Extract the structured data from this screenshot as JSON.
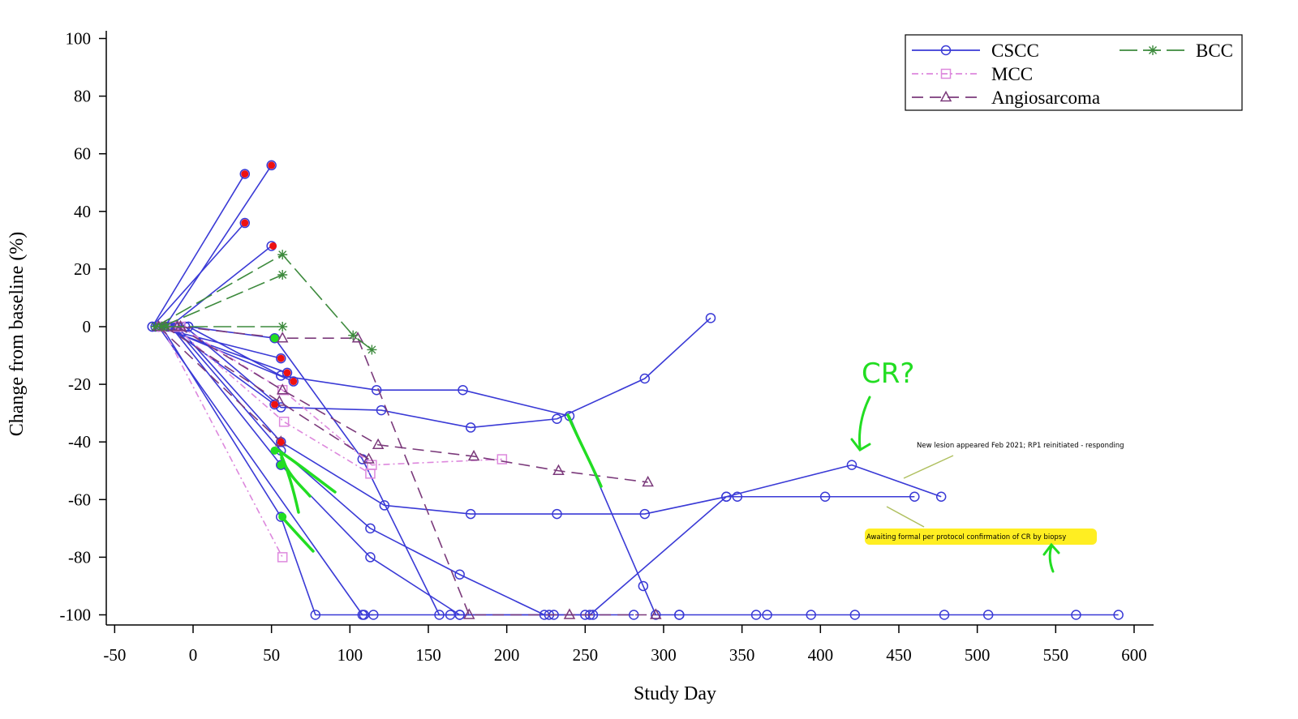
{
  "chart_data": {
    "type": "line",
    "xlabel": "Study Day",
    "ylabel": "Change from baseline (%)",
    "xlim": [
      -50,
      600
    ],
    "ylim": [
      -100,
      100
    ],
    "xticks": [
      -50,
      0,
      50,
      100,
      150,
      200,
      250,
      300,
      350,
      400,
      450,
      500,
      550,
      600
    ],
    "yticks": [
      -100,
      -80,
      -60,
      -40,
      -20,
      0,
      20,
      40,
      60,
      80,
      100
    ],
    "grid": false,
    "legend_position": "top-right",
    "legend": [
      {
        "label": "CSCC",
        "color": "#3a3ad6",
        "marker": "circle",
        "dash": ""
      },
      {
        "label": "MCC",
        "color": "#dd88dd",
        "marker": "square",
        "dash": "8,4,2,4"
      },
      {
        "label": "Angiosarcoma",
        "color": "#7b3a7b",
        "marker": "triangle",
        "dash": "14,8"
      },
      {
        "label": "BCC",
        "color": "#3d8a3d",
        "marker": "star",
        "dash": "22,7"
      }
    ],
    "series": [
      {
        "type": "CSCC",
        "points": [
          [
            -26,
            0
          ],
          [
            33,
            53
          ]
        ]
      },
      {
        "type": "CSCC",
        "points": [
          [
            -26,
            0
          ],
          [
            33,
            36
          ]
        ]
      },
      {
        "type": "CSCC",
        "points": [
          [
            -18,
            0
          ],
          [
            50,
            56
          ]
        ]
      },
      {
        "type": "CSCC",
        "points": [
          [
            -15,
            0
          ],
          [
            50,
            28
          ]
        ]
      },
      {
        "type": "CSCC",
        "points": [
          [
            -24,
            0
          ],
          [
            56,
            -11
          ]
        ]
      },
      {
        "type": "CSCC",
        "points": [
          [
            -22,
            0
          ],
          [
            60,
            -16
          ]
        ]
      },
      {
        "type": "CSCC",
        "points": [
          [
            -20,
            0
          ],
          [
            64,
            -19
          ]
        ]
      },
      {
        "type": "CSCC",
        "points": [
          [
            -16,
            0
          ],
          [
            52,
            -27
          ]
        ]
      },
      {
        "type": "CSCC",
        "points": [
          [
            -3,
            0
          ],
          [
            52,
            -4
          ],
          [
            108,
            -46
          ],
          [
            157,
            -100
          ],
          [
            164,
            -100
          ],
          [
            170,
            -100
          ]
        ]
      },
      {
        "type": "CSCC",
        "points": [
          [
            -3,
            0
          ],
          [
            56,
            -17
          ],
          [
            117,
            -22
          ],
          [
            172,
            -22
          ],
          [
            240,
            -31
          ],
          [
            287,
            -90
          ],
          [
            295,
            -100
          ],
          [
            310,
            -100
          ]
        ]
      },
      {
        "type": "CSCC",
        "points": [
          [
            -5,
            0
          ],
          [
            56,
            -28
          ],
          [
            120,
            -29
          ],
          [
            177,
            -35
          ],
          [
            232,
            -32
          ],
          [
            288,
            -18
          ],
          [
            330,
            3
          ]
        ]
      },
      {
        "type": "CSCC",
        "points": [
          [
            -10,
            0
          ],
          [
            56,
            -40
          ],
          [
            122,
            -62
          ],
          [
            177,
            -65
          ],
          [
            232,
            -65
          ],
          [
            288,
            -65
          ],
          [
            340,
            -59
          ],
          [
            420,
            -48
          ],
          [
            477,
            -59
          ]
        ]
      },
      {
        "type": "CSCC",
        "points": [
          [
            -12,
            0
          ],
          [
            56,
            -43
          ],
          [
            113,
            -70
          ],
          [
            170,
            -86
          ],
          [
            224,
            -100
          ],
          [
            227,
            -100
          ],
          [
            250,
            -100
          ],
          [
            255,
            -100
          ],
          [
            281,
            -100
          ]
        ]
      },
      {
        "type": "CSCC",
        "points": [
          [
            -14,
            0
          ],
          [
            56,
            -48
          ],
          [
            113,
            -80
          ],
          [
            170,
            -100
          ],
          [
            230,
            -100
          ]
        ]
      },
      {
        "type": "CSCC",
        "points": [
          [
            -20,
            0
          ],
          [
            56,
            -66
          ],
          [
            78,
            -100
          ],
          [
            109,
            -100
          ],
          [
            115,
            -100
          ]
        ]
      },
      {
        "type": "CSCC",
        "points": [
          [
            -22,
            0
          ],
          [
            108,
            -100
          ],
          [
            253,
            -100
          ],
          [
            340,
            -59
          ],
          [
            347,
            -59
          ],
          [
            403,
            -59
          ],
          [
            460,
            -59
          ]
        ]
      },
      {
        "type": "CSCC",
        "points": [
          [
            310,
            -100
          ],
          [
            359,
            -100
          ],
          [
            366,
            -100
          ],
          [
            394,
            -100
          ],
          [
            422,
            -100
          ],
          [
            479,
            -100
          ],
          [
            507,
            -100
          ],
          [
            563,
            -100
          ],
          [
            590,
            -100
          ]
        ]
      },
      {
        "type": "MCC",
        "points": [
          [
            -20,
            0
          ],
          [
            57,
            -80
          ]
        ]
      },
      {
        "type": "MCC",
        "points": [
          [
            -12,
            0
          ],
          [
            58,
            -33
          ],
          [
            113,
            -51
          ]
        ]
      },
      {
        "type": "MCC",
        "points": [
          [
            -8,
            0
          ],
          [
            57,
            -22
          ],
          [
            114,
            -48
          ],
          [
            197,
            -46
          ]
        ]
      },
      {
        "type": "Angiosarcoma",
        "points": [
          [
            -8,
            0
          ],
          [
            57,
            -4
          ],
          [
            105,
            -4
          ],
          [
            176,
            -100
          ],
          [
            240,
            -100
          ],
          [
            295,
            -100
          ]
        ]
      },
      {
        "type": "Angiosarcoma",
        "points": [
          [
            -10,
            0
          ],
          [
            57,
            -22
          ],
          [
            118,
            -41
          ],
          [
            179,
            -45
          ],
          [
            233,
            -50
          ],
          [
            290,
            -54
          ]
        ]
      },
      {
        "type": "Angiosarcoma",
        "points": [
          [
            -18,
            0
          ],
          [
            55,
            -26
          ],
          [
            112,
            -46
          ]
        ]
      },
      {
        "type": "Angiosarcoma",
        "points": [
          [
            -22,
            0
          ],
          [
            56,
            -40
          ]
        ]
      },
      {
        "type": "BCC",
        "points": [
          [
            -24,
            0
          ],
          [
            57,
            25
          ],
          [
            102,
            -3
          ],
          [
            114,
            -8
          ]
        ]
      },
      {
        "type": "BCC",
        "points": [
          [
            -20,
            0
          ],
          [
            57,
            18
          ]
        ]
      },
      {
        "type": "BCC",
        "points": [
          [
            -17,
            0
          ],
          [
            57,
            0
          ]
        ]
      }
    ],
    "annotations": {
      "new_lesion": "New lesion appeared Feb 2021; RP1 reinitiated - responding",
      "awaiting": "Awaiting formal per protocol confirmation of CR by biopsy",
      "handwritten": "CR?"
    },
    "highlight_colors": {
      "red": "#ee1111",
      "green": "#22dd22",
      "yellow": "#ffee22"
    }
  }
}
